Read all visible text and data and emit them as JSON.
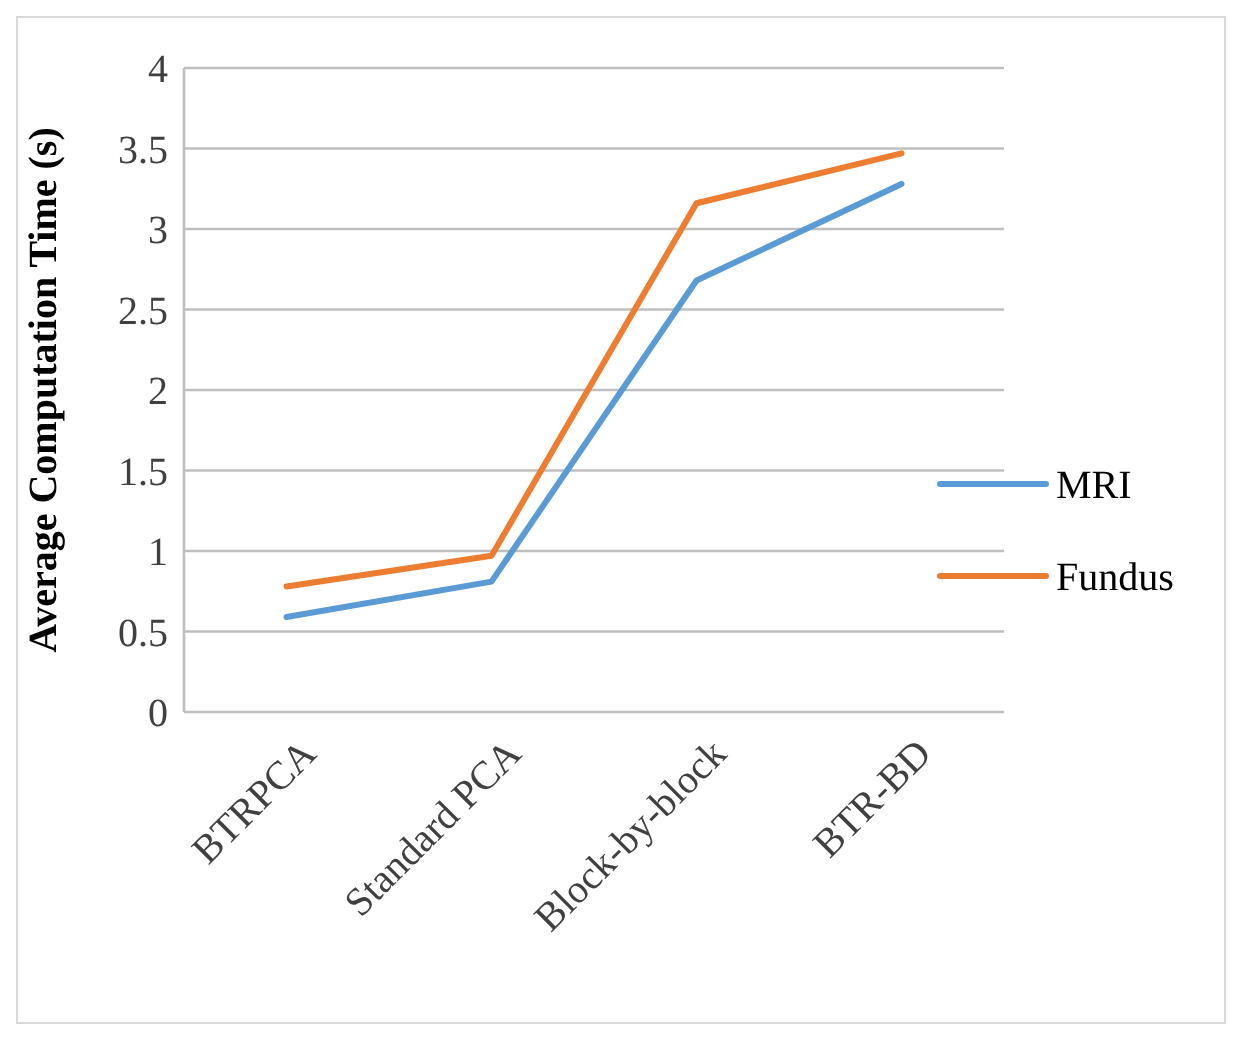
{
  "chart_data": {
    "type": "line",
    "ylabel": "Average Computation Time (s)",
    "categories": [
      "BTRPCA",
      "Standard PCA",
      "Block-by-block",
      "BTR-BD"
    ],
    "series": [
      {
        "name": "MRI",
        "color": "#5b9bd5",
        "values": [
          0.59,
          0.81,
          2.68,
          3.28
        ]
      },
      {
        "name": "Fundus",
        "color": "#ed7d31",
        "values": [
          0.78,
          0.97,
          3.16,
          3.47
        ]
      }
    ],
    "ylim": [
      0,
      4
    ],
    "yticks": [
      0,
      0.5,
      1,
      1.5,
      2,
      2.5,
      3,
      3.5,
      4
    ],
    "grid": "y",
    "legend": "right",
    "marker": "none",
    "line_style": "solid"
  }
}
